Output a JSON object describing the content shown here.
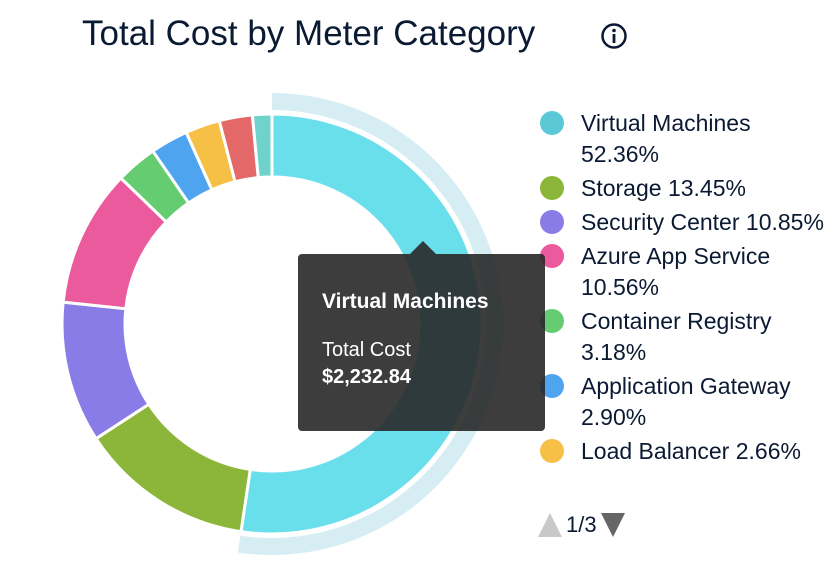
{
  "title": "Total Cost by Meter Category",
  "icons": {
    "info": "info-circle-icon"
  },
  "chart_data": {
    "type": "pie",
    "variant": "donut",
    "title": "Total Cost by Meter Category",
    "slices": [
      {
        "name": "Virtual Machines",
        "value": 52.36,
        "color": "#6adfec"
      },
      {
        "name": "Storage",
        "value": 13.45,
        "color": "#8cb63a"
      },
      {
        "name": "Security Center",
        "value": 10.85,
        "color": "#8a7ce6"
      },
      {
        "name": "Azure App Service",
        "value": 10.56,
        "color": "#ea5a9c"
      },
      {
        "name": "Container Registry",
        "value": 3.18,
        "color": "#66cc72"
      },
      {
        "name": "Application Gateway",
        "value": 2.9,
        "color": "#4ea4ee"
      },
      {
        "name": "Load Balancer",
        "value": 2.66,
        "color": "#f6bf45"
      },
      {
        "value": 2.55,
        "color": "#e46868"
      },
      {
        "value": 1.49,
        "color": "#6fd3cc"
      }
    ],
    "unit": "%",
    "highlighted": "Virtual Machines",
    "legend_position": "right"
  },
  "legend": {
    "items": [
      {
        "label": "Virtual Machines 52.36%",
        "color": "#5bc8d6"
      },
      {
        "label": "Storage 13.45%",
        "color": "#8cb63a"
      },
      {
        "label": "Security Center 10.85%",
        "color": "#8a7ce6"
      },
      {
        "label": "Azure App Service 10.56%",
        "color": "#ea5a9c"
      },
      {
        "label": "Container Registry 3.18%",
        "color": "#66cc72"
      },
      {
        "label": "Application Gateway 2.90%",
        "color": "#4ea4ee"
      },
      {
        "label": "Load Balancer 2.66%",
        "color": "#f6bf45"
      }
    ],
    "page": "1/3"
  },
  "tooltip": {
    "name": "Virtual Machines",
    "label": "Total Cost",
    "value": "$2,232.84"
  }
}
